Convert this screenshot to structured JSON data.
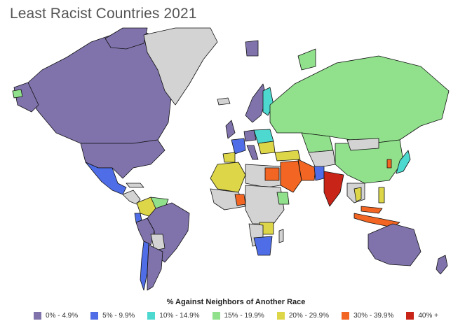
{
  "title": "Least Racist Countries 2021",
  "legend": {
    "title": "% Against Neighbors of Another Race",
    "items": [
      {
        "label": "0% - 4.9%",
        "color": "#8073ac"
      },
      {
        "label": "5% - 9.9%",
        "color": "#4f6de6"
      },
      {
        "label": "10% - 14.9%",
        "color": "#4dd9d0"
      },
      {
        "label": "15% - 19.9%",
        "color": "#90e08c"
      },
      {
        "label": "20% - 29.9%",
        "color": "#dcd648"
      },
      {
        "label": "30% - 39.9%",
        "color": "#f26522"
      },
      {
        "label": "40% +",
        "color": "#c82418"
      }
    ]
  },
  "colors": {
    "no_data": "#d3d3d3",
    "border": "#111111"
  }
}
